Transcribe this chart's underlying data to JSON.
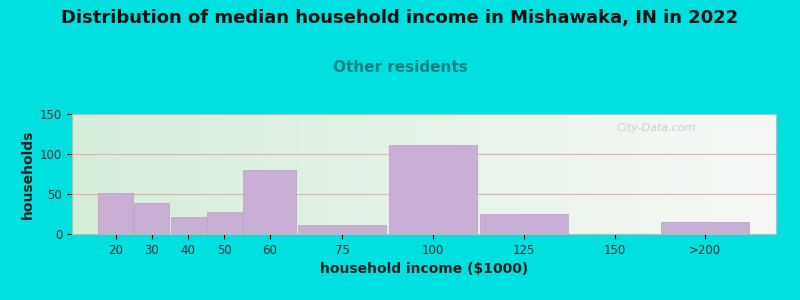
{
  "title": "Distribution of median household income in Mishawaka, IN in 2022",
  "subtitle": "Other residents",
  "xlabel": "household income ($1000)",
  "ylabel": "households",
  "categories": [
    "20",
    "30",
    "40",
    "50",
    "60",
    "75",
    "100",
    "125",
    "150",
    ">200"
  ],
  "values": [
    51,
    39,
    21,
    27,
    80,
    11,
    111,
    25,
    0,
    15
  ],
  "bar_color": "#c9afd4",
  "bar_edge_color": "#b89dc4",
  "ylim": [
    0,
    150
  ],
  "yticks": [
    0,
    50,
    100,
    150
  ],
  "background_outer": "#00e0e0",
  "background_inner_left": "#d6edda",
  "background_inner_right": "#f0f5f0",
  "title_fontsize": 13,
  "subtitle_fontsize": 11,
  "subtitle_color": "#008080",
  "axis_label_fontsize": 10,
  "watermark_text": "City-Data.com",
  "watermark_color": "#c8c8c8",
  "grid_color": "#e8b0b0",
  "x_positions": [
    20,
    30,
    40,
    50,
    60,
    75,
    100,
    125,
    150,
    175
  ],
  "bar_widths": [
    10,
    10,
    10,
    10,
    15,
    25,
    25,
    25,
    25,
    25
  ],
  "xlim": [
    13,
    207
  ]
}
